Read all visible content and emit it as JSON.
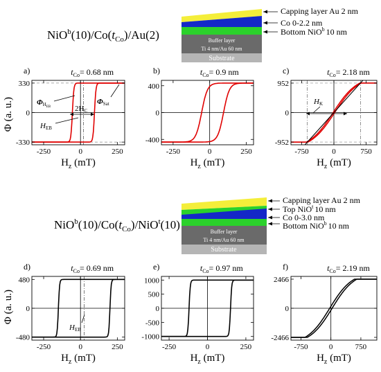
{
  "top": {
    "formula": {
      "pre": "NiO",
      "sup1": "b",
      "mid": "(10)/Co(",
      "t": "t",
      "tsub": "Co",
      "post": ")/Au(2)"
    },
    "stack": {
      "layers": [
        "Capping layer Au 2 nm",
        "Co 0-2.2 nm",
        "Bottom NiO",
        "10 nm"
      ],
      "bottom_sup": "b",
      "buffer": [
        "Buffer layer",
        "Ti 4 nm/Au 60 nm"
      ],
      "substrate": "Substrate"
    },
    "colors": {
      "cap": "#f4ee3a",
      "co": "#1428c8",
      "nio": "#2bd12b",
      "buffer": "#6a6a6a",
      "substrate": "#b5b5b5"
    }
  },
  "bottom": {
    "formula": {
      "pre": "NiO",
      "sup1": "b",
      "mid": "(10)/Co(",
      "t": "t",
      "tsub": "Co",
      "post": ")/NiO",
      "sup2": "t",
      "post2": "(10)"
    },
    "stack": {
      "layers": [
        "Capping layer Au 2 nm",
        "Top NiO",
        "10 nm",
        "Co 0-3.0 nm",
        "Bottom NiO",
        "10 nm"
      ],
      "top_sup": "t",
      "bottom_sup": "b",
      "buffer": [
        "Buffer layer",
        "Ti 4 nm/Au 60 nm"
      ],
      "substrate": "Substrate"
    }
  },
  "axis_labels": {
    "y": "Φ (a. u.)",
    "x_main": "H",
    "x_sub": "z",
    "x_unit": " (mT)"
  },
  "annotations": {
    "phi": "Φ",
    "heb_sub": "EB",
    "sat_sub": "Sat",
    "twoh": "2H",
    "twoh_sub": "C",
    "h": "H",
    "k_sub": "K"
  },
  "chart_data": [
    {
      "panel": "a)",
      "tco": "0.68 nm",
      "type": "line",
      "color": "#e00000",
      "xlim": [
        -330,
        300
      ],
      "ylim": [
        -360,
        360
      ],
      "xticks": [
        "-250",
        "0",
        "250"
      ],
      "yticks": [
        "330",
        "0",
        "-330"
      ],
      "ytick_values": [
        330,
        0,
        -330
      ],
      "xtick_values": [
        -250,
        0,
        250
      ],
      "sat": 330,
      "hc_left": -55,
      "hc_right": 95,
      "width": 10
    },
    {
      "panel": "b)",
      "tco": "0.9 nm",
      "type": "line",
      "color": "#e00000",
      "xlim": [
        -330,
        300
      ],
      "ylim": [
        -480,
        480
      ],
      "xticks": [
        "-250",
        "0",
        "250"
      ],
      "yticks": [
        "400",
        "0",
        "-400"
      ],
      "ytick_values": [
        400,
        0,
        -400
      ],
      "xtick_values": [
        -250,
        0,
        250
      ],
      "sat": 440,
      "hc_left": -55,
      "hc_right": 95,
      "width": 40
    },
    {
      "panel": "c)",
      "tco": "2.18 nm",
      "type": "line",
      "color": "#e00000",
      "xlim": [
        -1000,
        1000
      ],
      "ylim": [
        -1040,
        1040
      ],
      "xticks": [
        "-750",
        "0",
        "750"
      ],
      "yticks": [
        "952",
        "0",
        "-952"
      ],
      "ytick_values": [
        952,
        0,
        -952
      ],
      "xtick_values": [
        -750,
        0,
        750
      ],
      "sat": 952,
      "hk": 620
    },
    {
      "panel": "d)",
      "tco": "0.69 nm",
      "type": "line",
      "color": "#000000",
      "xlim": [
        -330,
        300
      ],
      "ylim": [
        -530,
        530
      ],
      "xticks": [
        "-250",
        "0",
        "250"
      ],
      "yticks": [
        "480",
        "0",
        "-480"
      ],
      "ytick_values": [
        480,
        0,
        -480
      ],
      "xtick_values": [
        -250,
        0,
        250
      ],
      "sat": 480,
      "hc_left": -150,
      "hc_right": 200,
      "width": 8
    },
    {
      "panel": "e)",
      "tco": "0.97 nm",
      "type": "line",
      "color": "#000000",
      "xlim": [
        -300,
        300
      ],
      "ylim": [
        -1130,
        1130
      ],
      "xticks": [
        "-250",
        "0",
        "250"
      ],
      "yticks": [
        "1000",
        "500",
        "0",
        "-500",
        "-1000"
      ],
      "ytick_values": [
        1000,
        500,
        0,
        -500,
        -1000
      ],
      "xtick_values": [
        -250,
        0,
        250
      ],
      "sat": 1000,
      "hc_left": -120,
      "hc_right": 150,
      "width": 8
    },
    {
      "panel": "f)",
      "tco": "2.19 nm",
      "type": "line",
      "color": "#000000",
      "xlim": [
        -1000,
        1150
      ],
      "ylim": [
        -2700,
        2700
      ],
      "xticks": [
        "-750",
        "0",
        "750"
      ],
      "yticks": [
        "2466",
        "0",
        "-2466"
      ],
      "ytick_values": [
        2466,
        0,
        -2466
      ],
      "xtick_values": [
        -750,
        0,
        750
      ],
      "sat": 2466,
      "hk": 620
    }
  ]
}
